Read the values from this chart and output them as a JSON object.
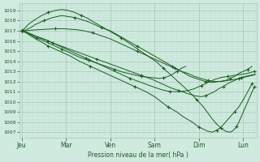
{
  "bg_color": "#d0eae0",
  "grid_color_major": "#a0c8b0",
  "grid_color_minor": "#bcdece",
  "line_color": "#1a5c20",
  "marker_color": "#1a5c20",
  "xlabel": "Pression niveau de la mer( hPa )",
  "ylim": [
    1006.5,
    1019.7
  ],
  "yticks": [
    1007,
    1008,
    1009,
    1010,
    1011,
    1012,
    1013,
    1014,
    1015,
    1016,
    1017,
    1018,
    1019
  ],
  "xtick_labels": [
    "Jeu",
    "Mar",
    "Ven",
    "Sam",
    "Dim",
    "Lun"
  ],
  "day_x": [
    0,
    1,
    2,
    3,
    4,
    5
  ],
  "xlim": [
    -0.05,
    5.3
  ],
  "series": [
    {
      "x": [
        0.0,
        0.08,
        0.17,
        0.33,
        0.5,
        0.7,
        0.9,
        1.1,
        1.3,
        1.5,
        1.7,
        1.9,
        2.1,
        2.3,
        2.5,
        2.7,
        2.9,
        3.1,
        3.2,
        3.3,
        3.4,
        3.5,
        3.6,
        3.7
      ],
      "y": [
        1017.0,
        1016.9,
        1016.7,
        1016.3,
        1016.0,
        1015.6,
        1015.2,
        1014.8,
        1014.4,
        1014.1,
        1013.8,
        1013.5,
        1013.2,
        1012.9,
        1012.7,
        1012.5,
        1012.4,
        1012.3,
        1012.35,
        1012.5,
        1012.7,
        1013.0,
        1013.3,
        1013.5
      ]
    },
    {
      "x": [
        0.0,
        0.1,
        0.2,
        0.4,
        0.6,
        0.85,
        1.1,
        1.3,
        1.55,
        1.8,
        2.05,
        2.3,
        2.55,
        2.8,
        3.0,
        3.15,
        3.3,
        3.5,
        3.65,
        3.85,
        4.0,
        4.1,
        4.2,
        4.3,
        4.4,
        4.5,
        4.6,
        4.7,
        4.8,
        4.9,
        5.0,
        5.1,
        5.2
      ],
      "y": [
        1017.0,
        1016.8,
        1016.5,
        1016.0,
        1015.5,
        1015.0,
        1014.5,
        1014.0,
        1013.5,
        1013.0,
        1012.5,
        1012.0,
        1011.5,
        1011.0,
        1010.5,
        1010.0,
        1009.5,
        1009.0,
        1008.5,
        1008.0,
        1007.5,
        1007.3,
        1007.1,
        1007.0,
        1007.2,
        1007.5,
        1008.0,
        1008.5,
        1009.0,
        1009.5,
        1010.2,
        1011.0,
        1011.8
      ]
    },
    {
      "x": [
        0.0,
        0.1,
        0.2,
        0.3,
        0.5,
        0.7,
        0.9,
        1.05,
        1.2,
        1.35,
        1.5,
        1.65,
        1.8,
        2.0,
        2.2,
        2.4,
        2.6,
        2.8,
        3.0,
        3.2,
        3.4,
        3.6,
        3.8,
        4.0,
        4.15,
        4.3,
        4.45,
        4.6,
        4.7,
        4.8,
        4.9,
        5.0,
        5.1,
        5.2
      ],
      "y": [
        1017.0,
        1017.1,
        1017.3,
        1017.6,
        1018.0,
        1018.3,
        1018.5,
        1018.4,
        1018.3,
        1018.1,
        1017.9,
        1017.6,
        1017.3,
        1017.0,
        1016.5,
        1016.0,
        1015.5,
        1015.0,
        1014.5,
        1014.0,
        1013.5,
        1013.0,
        1012.5,
        1012.2,
        1012.0,
        1011.9,
        1012.0,
        1012.1,
        1012.3,
        1012.5,
        1012.8,
        1013.0,
        1013.2,
        1013.5
      ]
    },
    {
      "x": [
        0.0,
        0.08,
        0.17,
        0.3,
        0.45,
        0.6,
        0.75,
        0.9,
        1.05,
        1.2,
        1.35,
        1.5,
        1.65,
        1.85,
        2.05,
        2.25,
        2.45,
        2.65,
        2.85,
        3.05,
        3.2,
        3.35,
        3.5,
        3.65,
        3.8,
        3.95,
        4.1,
        4.2,
        4.3,
        4.4,
        4.5,
        4.6,
        4.7,
        4.75,
        4.8,
        4.85,
        4.9,
        5.0,
        5.1,
        5.2,
        5.25
      ],
      "y": [
        1017.0,
        1017.3,
        1017.7,
        1018.1,
        1018.5,
        1018.8,
        1019.0,
        1019.1,
        1019.0,
        1018.8,
        1018.5,
        1018.2,
        1017.8,
        1017.3,
        1016.8,
        1016.3,
        1015.7,
        1015.1,
        1014.5,
        1013.9,
        1013.3,
        1012.7,
        1012.1,
        1011.5,
        1010.9,
        1010.2,
        1009.5,
        1008.9,
        1008.3,
        1007.8,
        1007.4,
        1007.1,
        1007.0,
        1007.1,
        1007.3,
        1007.6,
        1008.0,
        1009.0,
        1010.0,
        1011.0,
        1011.5
      ]
    },
    {
      "x": [
        0.0,
        0.15,
        0.3,
        0.5,
        0.7,
        0.95,
        1.2,
        1.45,
        1.7,
        1.95,
        2.2,
        2.45,
        2.7,
        2.95,
        3.15,
        3.35,
        3.55,
        3.75,
        3.9,
        4.05,
        4.15,
        4.25,
        4.35,
        4.45,
        4.55,
        4.65,
        4.75,
        4.85,
        4.95,
        5.05,
        5.15,
        5.25
      ],
      "y": [
        1017.0,
        1016.8,
        1016.5,
        1016.2,
        1015.8,
        1015.4,
        1015.0,
        1014.6,
        1014.2,
        1013.8,
        1013.4,
        1013.0,
        1012.6,
        1012.2,
        1011.8,
        1011.4,
        1011.1,
        1010.8,
        1010.6,
        1010.5,
        1010.6,
        1010.8,
        1011.0,
        1011.3,
        1011.5,
        1011.8,
        1012.0,
        1012.2,
        1012.4,
        1012.5,
        1012.6,
        1012.7
      ]
    },
    {
      "x": [
        0.0,
        0.12,
        0.25,
        0.4,
        0.6,
        0.8,
        1.0,
        1.2,
        1.45,
        1.7,
        1.95,
        2.2,
        2.45,
        2.7,
        2.95,
        3.15,
        3.35,
        3.55,
        3.75,
        3.9,
        4.05,
        4.2,
        4.35,
        4.5,
        4.65,
        4.8,
        4.95,
        5.1,
        5.25
      ],
      "y": [
        1017.0,
        1016.8,
        1016.6,
        1016.3,
        1016.0,
        1015.6,
        1015.2,
        1014.8,
        1014.3,
        1013.8,
        1013.3,
        1012.8,
        1012.3,
        1011.9,
        1011.5,
        1011.2,
        1011.0,
        1011.0,
        1011.1,
        1011.3,
        1011.6,
        1011.9,
        1012.2,
        1012.4,
        1012.5,
        1012.6,
        1012.7,
        1012.8,
        1013.0
      ]
    },
    {
      "x": [
        0.0,
        0.1,
        0.2,
        0.35,
        0.55,
        0.75,
        0.95,
        1.1,
        1.25,
        1.4,
        1.6,
        1.8,
        2.0,
        2.2,
        2.4,
        2.6,
        2.8,
        3.0,
        3.15,
        3.3,
        3.45,
        3.6,
        3.75,
        3.9,
        4.05,
        4.2,
        4.35,
        4.5,
        4.65,
        4.8,
        4.9,
        5.0,
        5.1,
        5.2,
        5.28
      ],
      "y": [
        1017.0,
        1017.0,
        1017.05,
        1017.1,
        1017.15,
        1017.2,
        1017.2,
        1017.15,
        1017.1,
        1017.0,
        1016.8,
        1016.5,
        1016.2,
        1015.8,
        1015.4,
        1015.0,
        1014.6,
        1014.2,
        1013.9,
        1013.6,
        1013.3,
        1013.0,
        1012.8,
        1012.5,
        1012.3,
        1012.1,
        1012.0,
        1012.0,
        1012.1,
        1012.2,
        1012.3,
        1012.4,
        1012.5,
        1012.6,
        1012.7
      ]
    }
  ],
  "marker_step": [
    3,
    4,
    4,
    5,
    4,
    4,
    5
  ]
}
